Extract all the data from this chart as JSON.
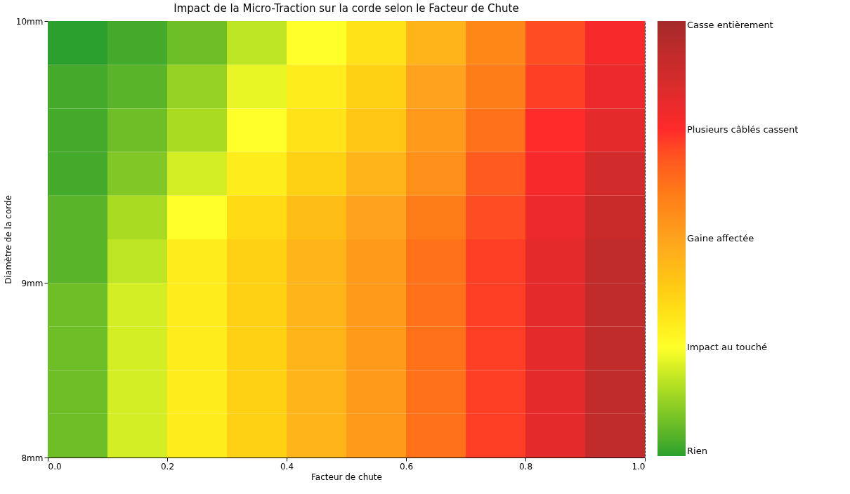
{
  "chart_data": {
    "type": "heatmap",
    "title": "Impact de la Micro-Traction sur la corde selon le Facteur de Chute",
    "xlabel": "Facteur de chute",
    "ylabel": "Diamètre de la corde",
    "x": [
      0.05,
      0.15,
      0.25,
      0.35,
      0.45,
      0.55,
      0.65,
      0.75,
      0.85,
      0.95
    ],
    "y": [
      9.9,
      9.7,
      9.5,
      9.3,
      9.1,
      8.9,
      8.7,
      8.5,
      8.3,
      8.1
    ],
    "cells": [
      [
        0.0,
        0.1,
        0.3,
        0.7,
        1.0,
        1.3,
        1.8,
        2.3,
        2.8,
        3.1
      ],
      [
        0.1,
        0.2,
        0.5,
        0.9,
        1.2,
        1.5,
        2.0,
        2.4,
        2.9,
        3.2
      ],
      [
        0.1,
        0.3,
        0.6,
        1.0,
        1.3,
        1.6,
        2.1,
        2.5,
        3.0,
        3.3
      ],
      [
        0.1,
        0.4,
        0.8,
        1.2,
        1.5,
        1.8,
        2.2,
        2.7,
        3.1,
        3.5
      ],
      [
        0.2,
        0.6,
        1.0,
        1.4,
        1.7,
        2.0,
        2.4,
        2.8,
        3.2,
        3.6
      ],
      [
        0.2,
        0.7,
        1.2,
        1.5,
        1.8,
        2.1,
        2.5,
        2.9,
        3.3,
        3.7
      ],
      [
        0.3,
        0.8,
        1.2,
        1.5,
        1.8,
        2.1,
        2.5,
        2.9,
        3.3,
        3.7
      ],
      [
        0.3,
        0.8,
        1.2,
        1.5,
        1.8,
        2.1,
        2.5,
        2.9,
        3.3,
        3.7
      ],
      [
        0.3,
        0.8,
        1.2,
        1.5,
        1.8,
        2.1,
        2.5,
        2.9,
        3.3,
        3.7
      ],
      [
        0.3,
        0.8,
        1.2,
        1.5,
        1.8,
        2.1,
        2.5,
        2.9,
        3.3,
        3.7
      ]
    ],
    "xlim": [
      0,
      1
    ],
    "xticks": [
      {
        "value": 0,
        "label": "0.0"
      },
      0.2,
      0.4,
      0.6,
      0.8,
      {
        "value": 1,
        "label": "1.0"
      }
    ],
    "ylim": [
      8,
      10
    ],
    "yticks": [
      {
        "value": 8,
        "label": "8mm"
      },
      {
        "value": 8.8,
        "label": "9mm"
      },
      {
        "value": 10,
        "label": "10mm"
      }
    ],
    "clim": [
      0,
      4
    ],
    "cticks": [
      {
        "value": 0,
        "label": "Rien"
      },
      {
        "value": 1,
        "label": "Impact au touché"
      },
      {
        "value": 2,
        "label": "Gaine affectée"
      },
      {
        "value": 3,
        "label": "Plusieurs câblés cassent"
      },
      {
        "value": 4,
        "label": "Casse entièrement"
      }
    ],
    "grid": "x"
  }
}
